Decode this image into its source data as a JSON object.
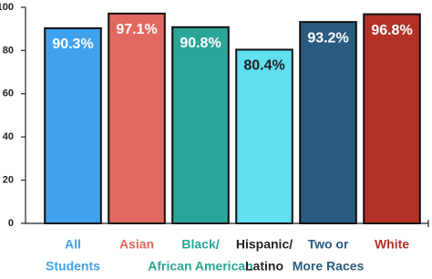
{
  "chart_data": {
    "type": "bar",
    "categories": [
      [
        "All",
        "Students"
      ],
      [
        "Asian"
      ],
      [
        "Black/",
        "African American"
      ],
      [
        "Hispanic/",
        "Latino"
      ],
      [
        "Two or",
        "More Races"
      ],
      [
        "White"
      ]
    ],
    "values": [
      90.3,
      97.1,
      90.8,
      80.4,
      93.2,
      96.8
    ],
    "value_labels": [
      "90.3%",
      "97.1%",
      "90.8%",
      "80.4%",
      "93.2%",
      "96.8%"
    ],
    "colors": [
      "#3fa1ee",
      "#e0685e",
      "#2aa597",
      "#5fdff0",
      "#2a5b80",
      "#b33126"
    ],
    "label_colors": [
      "#3fa1ee",
      "#e0685e",
      "#2aa597",
      "#222222",
      "#2a5b80",
      "#b33126"
    ],
    "value_label_colors": [
      "#ffffff",
      "#ffffff",
      "#ffffff",
      "#222222",
      "#ffffff",
      "#ffffff"
    ],
    "ylim": [
      0,
      100
    ],
    "yticks": [
      0,
      20,
      40,
      60,
      80,
      100
    ],
    "grid": false
  }
}
